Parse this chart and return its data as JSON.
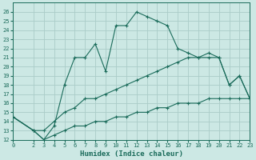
{
  "xlabel": "Humidex (Indice chaleur)",
  "bg_color": "#cce8e4",
  "line_color": "#1a6b5a",
  "grid_color": "#aaccc8",
  "xlim": [
    0,
    23
  ],
  "ylim": [
    12,
    27
  ],
  "yticks": [
    12,
    13,
    14,
    15,
    16,
    17,
    18,
    19,
    20,
    21,
    22,
    23,
    24,
    25,
    26
  ],
  "xticks": [
    0,
    2,
    3,
    4,
    5,
    6,
    7,
    8,
    9,
    10,
    11,
    12,
    13,
    14,
    15,
    16,
    17,
    18,
    19,
    20,
    21,
    22,
    23
  ],
  "curve1_x": [
    0,
    2,
    3,
    4,
    5,
    6,
    7,
    8,
    9,
    10,
    11,
    12,
    13,
    14,
    15,
    16,
    17,
    18,
    19,
    20,
    21,
    22,
    23
  ],
  "curve1_y": [
    14.5,
    13.0,
    12.0,
    13.5,
    18.0,
    21.0,
    21.0,
    22.5,
    19.5,
    24.5,
    24.5,
    26.0,
    25.5,
    25.0,
    24.5,
    22.0,
    21.5,
    21.0,
    21.5,
    21.0,
    18.0,
    19.0,
    16.5
  ],
  "curve2_x": [
    0,
    2,
    3,
    4,
    5,
    6,
    7,
    8,
    9,
    10,
    11,
    12,
    13,
    14,
    15,
    16,
    17,
    18,
    19,
    20,
    21,
    22,
    23
  ],
  "curve2_y": [
    14.5,
    13.0,
    13.0,
    14.0,
    15.0,
    15.5,
    16.5,
    16.5,
    17.0,
    17.5,
    18.0,
    18.5,
    19.0,
    19.5,
    20.0,
    20.5,
    21.0,
    21.0,
    21.0,
    21.0,
    18.0,
    19.0,
    16.5
  ],
  "curve3_x": [
    0,
    2,
    3,
    4,
    5,
    6,
    7,
    8,
    9,
    10,
    11,
    12,
    13,
    14,
    15,
    16,
    17,
    18,
    19,
    20,
    21,
    22,
    23
  ],
  "curve3_y": [
    14.5,
    13.0,
    12.0,
    12.5,
    13.0,
    13.5,
    13.5,
    14.0,
    14.0,
    14.5,
    14.5,
    15.0,
    15.0,
    15.5,
    15.5,
    16.0,
    16.0,
    16.0,
    16.5,
    16.5,
    16.5,
    16.5,
    16.5
  ]
}
